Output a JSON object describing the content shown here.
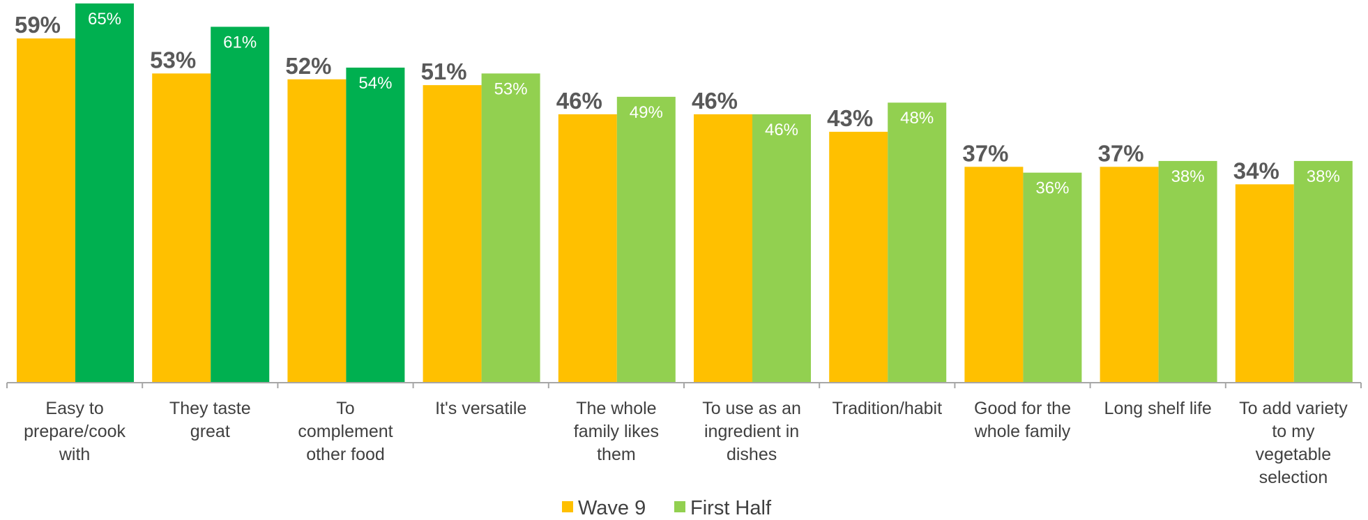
{
  "chart_data": {
    "type": "bar",
    "title": "",
    "xlabel": "",
    "ylabel": "",
    "ylim": [
      0,
      66
    ],
    "grid": false,
    "legend_position": "bottom-center",
    "categories": [
      [
        "Easy to",
        "prepare/cook",
        "with"
      ],
      [
        "They taste",
        "great"
      ],
      [
        "To",
        "complement",
        "other food"
      ],
      [
        "It's versatile"
      ],
      [
        "The whole",
        "family likes",
        "them"
      ],
      [
        "To use as an",
        "ingredient in",
        "dishes"
      ],
      [
        "Tradition/habit"
      ],
      [
        "Good for the",
        "whole family"
      ],
      [
        "Long shelf life"
      ],
      [
        "To add variety",
        "to my",
        "vegetable",
        "selection"
      ]
    ],
    "series": [
      {
        "name": "Wave 9",
        "color": "#FFC000",
        "values": [
          59,
          53,
          52,
          51,
          46,
          46,
          43,
          37,
          37,
          34
        ],
        "labels": [
          "59%",
          "53%",
          "52%",
          "51%",
          "46%",
          "46%",
          "43%",
          "37%",
          "37%",
          "34%"
        ]
      },
      {
        "name": "First Half",
        "color": "#92D050",
        "highlight_color": "#00B050",
        "highlight_indices": [
          0,
          1,
          2
        ],
        "values": [
          65,
          61,
          54,
          53,
          49,
          46,
          48,
          36,
          38,
          38
        ],
        "labels": [
          "65%",
          "61%",
          "54%",
          "53%",
          "49%",
          "46%",
          "48%",
          "36%",
          "38%",
          "38%"
        ]
      }
    ],
    "legend": [
      {
        "name": "Wave 9",
        "color": "#FFC000"
      },
      {
        "name": "First Half",
        "color": "#92D050"
      }
    ]
  }
}
